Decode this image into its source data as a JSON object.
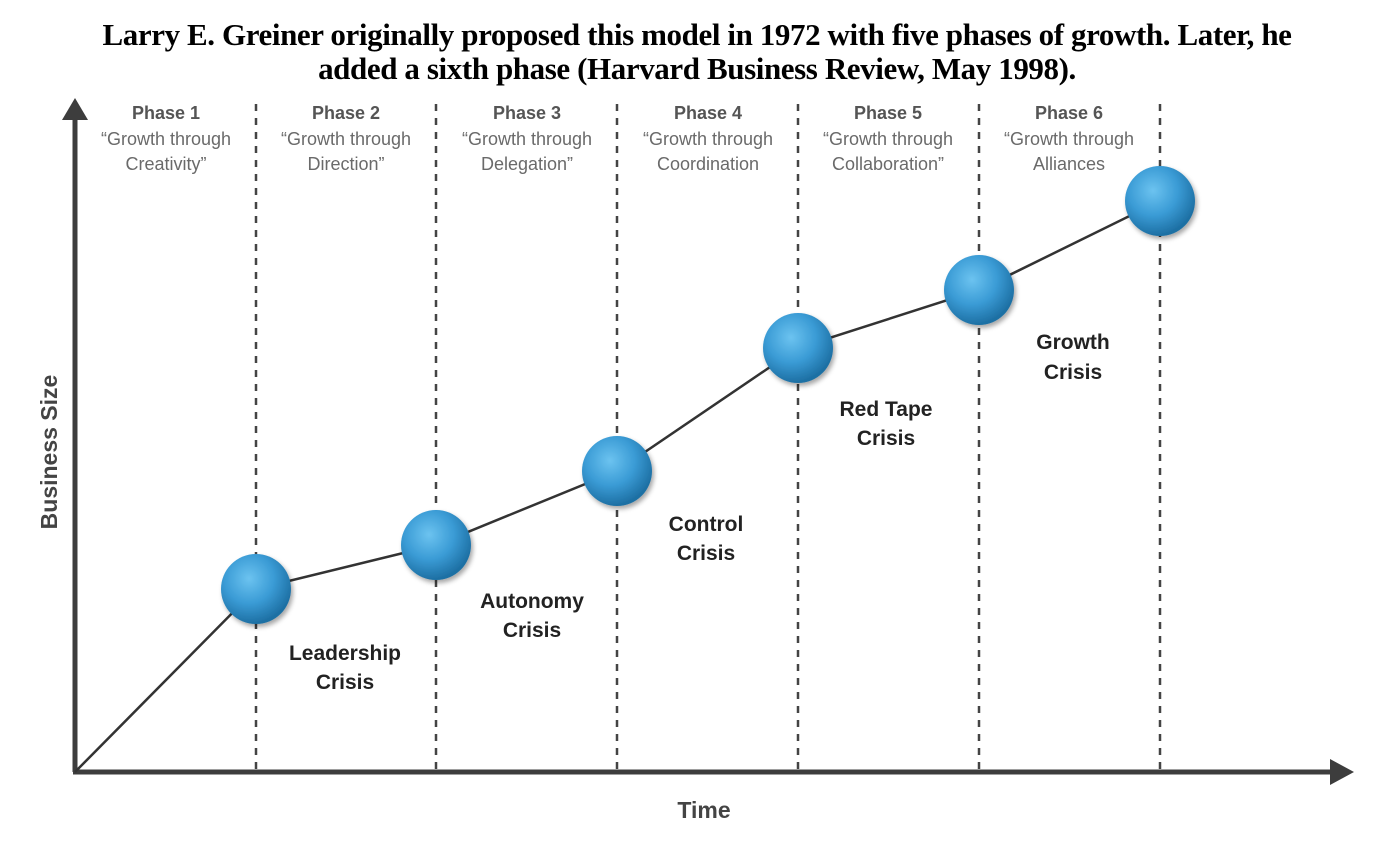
{
  "title": {
    "line1": "Larry E. Greiner originally proposed this model in 1972 with five phases of growth. Later, he",
    "line2": "added a sixth phase (Harvard Business Review, May 1998)."
  },
  "axes": {
    "x_label": "Time",
    "y_label": "Business Size"
  },
  "phases": [
    {
      "name": "Phase 1",
      "desc_line1": "“Growth through",
      "desc_line2": "Creativity”"
    },
    {
      "name": "Phase 2",
      "desc_line1": "“Growth through",
      "desc_line2": "Direction”"
    },
    {
      "name": "Phase 3",
      "desc_line1": "“Growth through",
      "desc_line2": "Delegation”"
    },
    {
      "name": "Phase 4",
      "desc_line1": "“Growth through",
      "desc_line2": "Coordination"
    },
    {
      "name": "Phase 5",
      "desc_line1": "“Growth through",
      "desc_line2": "Collaboration”"
    },
    {
      "name": "Phase 6",
      "desc_line1": "“Growth through",
      "desc_line2": "Alliances"
    }
  ],
  "crises": [
    {
      "line1": "Leadership",
      "line2": "Crisis"
    },
    {
      "line1": "Autonomy",
      "line2": "Crisis"
    },
    {
      "line1": "Control",
      "line2": "Crisis"
    },
    {
      "line1": "Red Tape",
      "line2": "Crisis"
    },
    {
      "line1": "Growth",
      "line2": "Crisis"
    }
  ],
  "colors": {
    "node": "#3a9bd5",
    "line": "#333333",
    "axis": "#3d3d3d"
  }
}
